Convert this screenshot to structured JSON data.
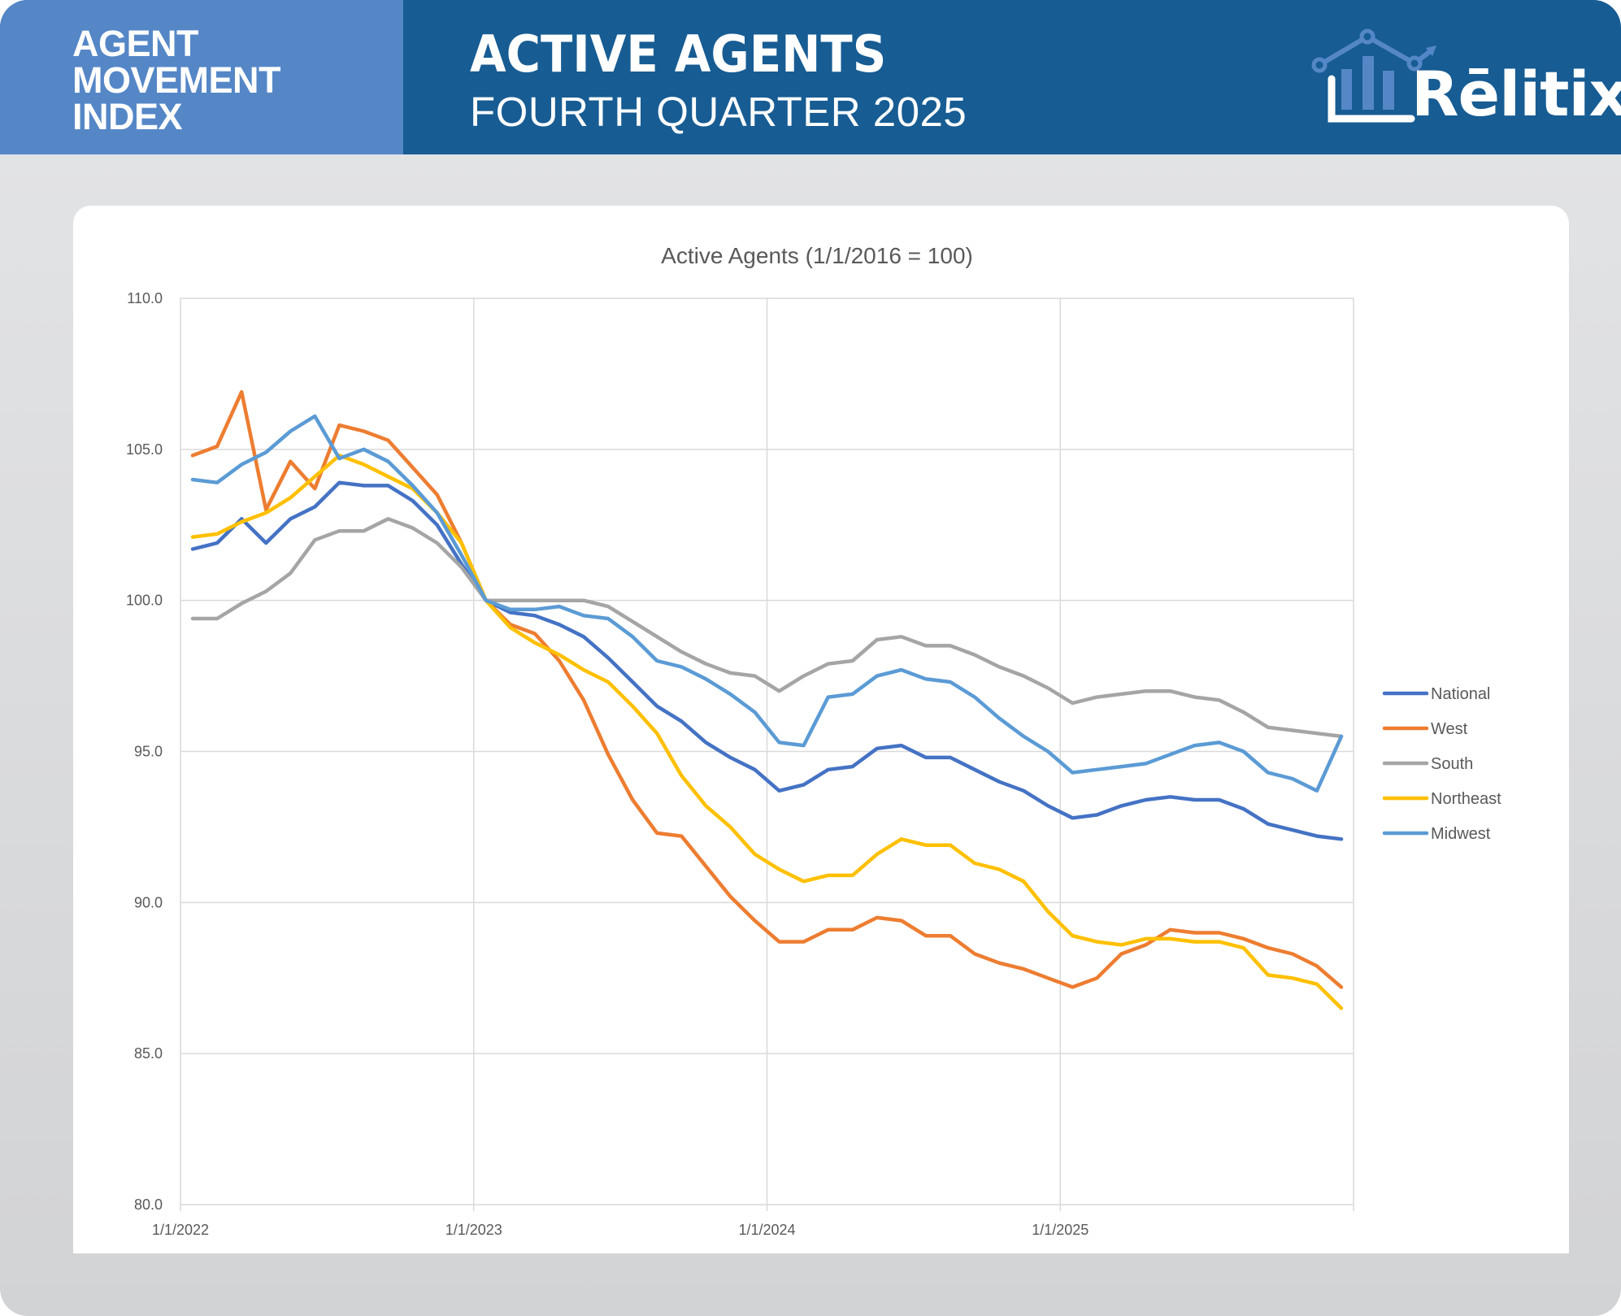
{
  "header": {
    "index_title_lines": [
      "AGENT",
      "MOVEMENT",
      "INDEX"
    ],
    "title": "ACTIVE AGENTS",
    "subtitle": "FOURTH QUARTER 2025",
    "logo_text": "Rēlitix",
    "logo_icon": "house-chart-logo-icon",
    "colors": {
      "left_panel": "#5587c7",
      "main_panel": "#175c93",
      "logo_accent": "#5587c7"
    }
  },
  "chart_data": {
    "type": "line",
    "title": "Active Agents (1/1/2016 = 100)",
    "xlabel": "",
    "ylabel": "",
    "ylim": [
      80,
      110
    ],
    "yticks": [
      80,
      85,
      90,
      95,
      100,
      105,
      110
    ],
    "ytick_labels": [
      "80.0",
      "85.0",
      "90.0",
      "95.0",
      "100.0",
      "105.0",
      "110.0"
    ],
    "x_start": "2022-01",
    "x_end": "2025-12",
    "xtick_labels": [
      "1/1/2022",
      "1/1/2023",
      "1/1/2024",
      "1/1/2025"
    ],
    "grid": true,
    "legend_position": "right",
    "x": [
      "2022-01",
      "2022-02",
      "2022-03",
      "2022-04",
      "2022-05",
      "2022-06",
      "2022-07",
      "2022-08",
      "2022-09",
      "2022-10",
      "2022-11",
      "2022-12",
      "2023-01",
      "2023-02",
      "2023-03",
      "2023-04",
      "2023-05",
      "2023-06",
      "2023-07",
      "2023-08",
      "2023-09",
      "2023-10",
      "2023-11",
      "2023-12",
      "2024-01",
      "2024-02",
      "2024-03",
      "2024-04",
      "2024-05",
      "2024-06",
      "2024-07",
      "2024-08",
      "2024-09",
      "2024-10",
      "2024-11",
      "2024-12",
      "2025-01",
      "2025-02",
      "2025-03",
      "2025-04",
      "2025-05",
      "2025-06",
      "2025-07",
      "2025-08",
      "2025-09",
      "2025-10",
      "2025-11",
      "2025-12"
    ],
    "series": [
      {
        "name": "National",
        "color": "#4472c4",
        "values": [
          101.7,
          101.9,
          102.7,
          101.9,
          102.7,
          103.1,
          103.9,
          103.8,
          103.8,
          103.3,
          102.5,
          101.2,
          100.0,
          99.6,
          99.5,
          99.2,
          98.8,
          98.1,
          97.3,
          96.5,
          96.0,
          95.3,
          94.8,
          94.4,
          93.7,
          93.9,
          94.4,
          94.5,
          95.1,
          95.2,
          94.8,
          94.8,
          94.4,
          94.0,
          93.7,
          93.2,
          92.8,
          92.9,
          93.2,
          93.4,
          93.5,
          93.4,
          93.4,
          93.1,
          92.6,
          92.4,
          92.2,
          92.1
        ]
      },
      {
        "name": "West",
        "color": "#ed7d31",
        "values": [
          104.8,
          105.1,
          106.9,
          103.0,
          104.6,
          103.7,
          105.8,
          105.6,
          105.3,
          104.4,
          103.5,
          101.9,
          100.0,
          99.2,
          98.9,
          98.0,
          96.7,
          94.9,
          93.4,
          92.3,
          92.2,
          91.2,
          90.2,
          89.4,
          88.7,
          88.7,
          89.1,
          89.1,
          89.5,
          89.4,
          88.9,
          88.9,
          88.3,
          88.0,
          87.8,
          87.5,
          87.2,
          87.5,
          88.3,
          88.6,
          89.1,
          89.0,
          89.0,
          88.8,
          88.5,
          88.3,
          87.9,
          87.2
        ]
      },
      {
        "name": "South",
        "color": "#a5a5a5",
        "values": [
          99.4,
          99.4,
          99.9,
          100.3,
          100.9,
          102.0,
          102.3,
          102.3,
          102.7,
          102.4,
          101.9,
          101.1,
          100.0,
          100.0,
          100.0,
          100.0,
          100.0,
          99.8,
          99.3,
          98.8,
          98.3,
          97.9,
          97.6,
          97.5,
          97.0,
          97.5,
          97.9,
          98.0,
          98.7,
          98.8,
          98.5,
          98.5,
          98.2,
          97.8,
          97.5,
          97.1,
          96.6,
          96.8,
          96.9,
          97.0,
          97.0,
          96.8,
          96.7,
          96.3,
          95.8,
          95.7,
          95.6,
          95.5
        ]
      },
      {
        "name": "Northeast",
        "color": "#ffc000",
        "values": [
          102.1,
          102.2,
          102.6,
          102.9,
          103.4,
          104.1,
          104.8,
          104.5,
          104.1,
          103.7,
          102.9,
          101.9,
          100.0,
          99.1,
          98.6,
          98.2,
          97.7,
          97.3,
          96.5,
          95.6,
          94.2,
          93.2,
          92.5,
          91.6,
          91.1,
          90.7,
          90.9,
          90.9,
          91.6,
          92.1,
          91.9,
          91.9,
          91.3,
          91.1,
          90.7,
          89.7,
          88.9,
          88.7,
          88.6,
          88.8,
          88.8,
          88.7,
          88.7,
          88.5,
          87.6,
          87.5,
          87.3,
          86.5
        ]
      },
      {
        "name": "Midwest",
        "color": "#5b9bd5",
        "values": [
          104.0,
          103.9,
          104.5,
          104.9,
          105.6,
          106.1,
          104.7,
          105.0,
          104.6,
          103.8,
          102.9,
          101.5,
          100.0,
          99.7,
          99.7,
          99.8,
          99.5,
          99.4,
          98.8,
          98.0,
          97.8,
          97.4,
          96.9,
          96.3,
          95.3,
          95.2,
          96.8,
          96.9,
          97.5,
          97.7,
          97.4,
          97.3,
          96.8,
          96.1,
          95.5,
          95.0,
          94.3,
          94.4,
          94.5,
          94.6,
          94.9,
          95.2,
          95.3,
          95.0,
          94.3,
          94.1,
          93.7,
          95.5
        ]
      }
    ]
  }
}
